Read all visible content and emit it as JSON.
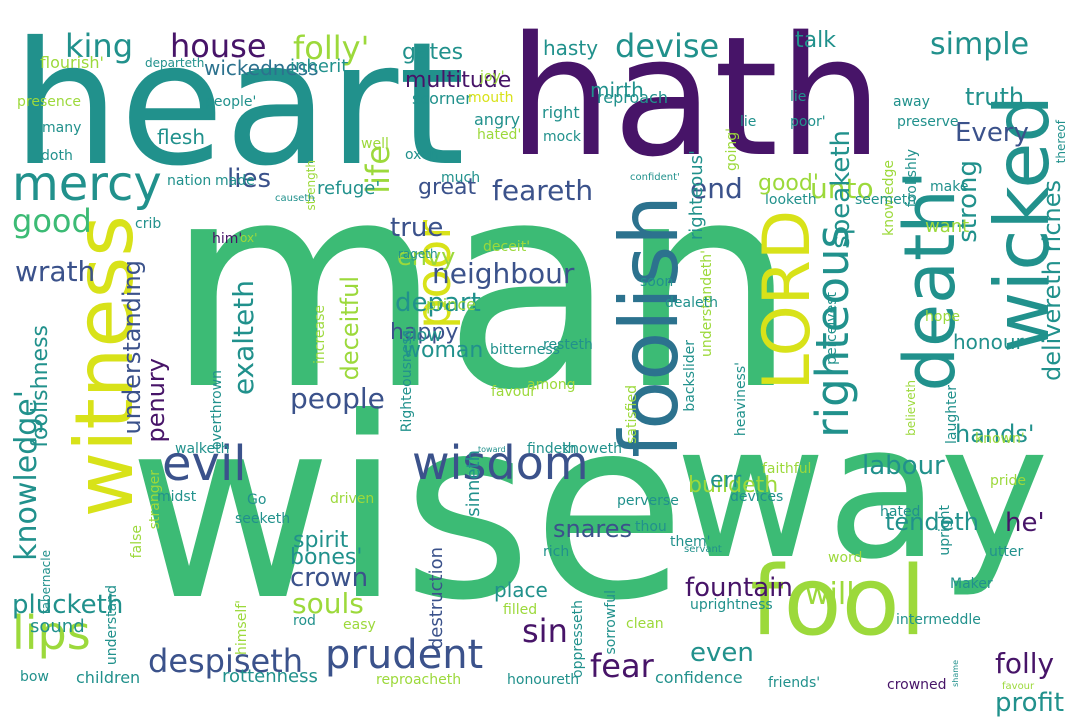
{
  "word_cloud": {
    "colors": {
      "background": "#ffffff",
      "dark_purple": "#471468",
      "indigo": "#3b528b",
      "blue_teal": "#2c728e",
      "teal": "#21918c",
      "green": "#3cbb75",
      "lime": "#9cd93b",
      "yellow": "#d8e219"
    },
    "words": [
      {
        "text": "man"
      },
      {
        "text": "wise"
      },
      {
        "text": "heart"
      },
      {
        "text": "hath"
      },
      {
        "text": "way"
      },
      {
        "text": "fool"
      },
      {
        "text": "foolish"
      },
      {
        "text": "witness"
      },
      {
        "text": "death'"
      },
      {
        "text": "wicked"
      },
      {
        "text": "LORD"
      },
      {
        "text": "mercy"
      },
      {
        "text": "evil"
      },
      {
        "text": "wisdom"
      },
      {
        "text": "lips"
      },
      {
        "text": "poor"
      },
      {
        "text": "prudent"
      },
      {
        "text": "knowledge'"
      },
      {
        "text": "righteous"
      },
      {
        "text": "house"
      },
      {
        "text": "king"
      },
      {
        "text": "folly'"
      },
      {
        "text": "devise"
      },
      {
        "text": "simple"
      },
      {
        "text": "truth"
      },
      {
        "text": "Every"
      },
      {
        "text": "lies"
      },
      {
        "text": "life"
      },
      {
        "text": "good"
      },
      {
        "text": "feareth"
      },
      {
        "text": "end"
      },
      {
        "text": "unto"
      },
      {
        "text": "neighbour"
      },
      {
        "text": "understanding"
      },
      {
        "text": "exalteth"
      },
      {
        "text": "people"
      },
      {
        "text": "will"
      },
      {
        "text": "speaketh"
      },
      {
        "text": "despiseth"
      },
      {
        "text": "foolishness"
      },
      {
        "text": "wrath"
      },
      {
        "text": "penury"
      },
      {
        "text": "sin"
      },
      {
        "text": "fear"
      },
      {
        "text": "even"
      },
      {
        "text": "folly"
      },
      {
        "text": "profit"
      },
      {
        "text": "plucketh"
      },
      {
        "text": "crown"
      },
      {
        "text": "souls"
      },
      {
        "text": "fountain"
      },
      {
        "text": "labour"
      },
      {
        "text": "hands'"
      },
      {
        "text": "he'"
      },
      {
        "text": "tendeth"
      },
      {
        "text": "delivereth"
      },
      {
        "text": "riches"
      },
      {
        "text": "strong"
      },
      {
        "text": "multitude"
      },
      {
        "text": "talk"
      },
      {
        "text": "hasty"
      },
      {
        "text": "gates"
      },
      {
        "text": "wickedness"
      },
      {
        "text": "inherit"
      },
      {
        "text": "joy'"
      },
      {
        "text": "flourish'"
      },
      {
        "text": "departeth"
      },
      {
        "text": "mirth"
      },
      {
        "text": "away"
      },
      {
        "text": "scorner"
      },
      {
        "text": "reproach"
      },
      {
        "text": "people'"
      },
      {
        "text": "mouth"
      },
      {
        "text": "right"
      },
      {
        "text": "angry"
      },
      {
        "text": "hated'"
      },
      {
        "text": "mock"
      },
      {
        "text": "righteous'"
      },
      {
        "text": "going'"
      },
      {
        "text": "lie"
      },
      {
        "text": "poor'"
      },
      {
        "text": "preserve"
      },
      {
        "text": "presence"
      },
      {
        "text": "many"
      },
      {
        "text": "doth"
      },
      {
        "text": "flesh"
      },
      {
        "text": "strength"
      },
      {
        "text": "well"
      },
      {
        "text": "oxen"
      },
      {
        "text": "nation"
      },
      {
        "text": "made"
      },
      {
        "text": "much"
      },
      {
        "text": "causeth"
      },
      {
        "text": "confident'"
      },
      {
        "text": "lie"
      },
      {
        "text": "foolishly"
      },
      {
        "text": "make"
      },
      {
        "text": "knowledge"
      },
      {
        "text": "thereof"
      },
      {
        "text": "seemeth"
      },
      {
        "text": "looketh"
      },
      {
        "text": "refuge'"
      },
      {
        "text": "great"
      },
      {
        "text": "good'"
      },
      {
        "text": "true"
      },
      {
        "text": "envy"
      },
      {
        "text": "him'"
      },
      {
        "text": "ox'"
      },
      {
        "text": "crib"
      },
      {
        "text": "increase"
      },
      {
        "text": "rageth"
      },
      {
        "text": "deceit'"
      },
      {
        "text": "understandeth'"
      },
      {
        "text": "want"
      },
      {
        "text": "depart"
      },
      {
        "text": "deceitful"
      },
      {
        "text": "happy"
      },
      {
        "text": "woman"
      },
      {
        "text": "prince"
      },
      {
        "text": "soon"
      },
      {
        "text": "slow"
      },
      {
        "text": "dealeth"
      },
      {
        "text": "bitterness"
      },
      {
        "text": "perceivest"
      },
      {
        "text": "hope"
      },
      {
        "text": "honour"
      },
      {
        "text": "resteth"
      },
      {
        "text": "among"
      },
      {
        "text": "satisfied"
      },
      {
        "text": "favour'"
      },
      {
        "text": "heaviness'"
      },
      {
        "text": "backslider"
      },
      {
        "text": "believeth"
      },
      {
        "text": "laughter"
      },
      {
        "text": "known'"
      },
      {
        "text": "overthrown"
      },
      {
        "text": "walketh"
      },
      {
        "text": "Righteousness"
      },
      {
        "text": "findeth"
      },
      {
        "text": "toward"
      },
      {
        "text": "knoweth"
      },
      {
        "text": "faithful"
      },
      {
        "text": "devices"
      },
      {
        "text": "Go"
      },
      {
        "text": "stranger"
      },
      {
        "text": "midst"
      },
      {
        "text": "seeketh"
      },
      {
        "text": "driven"
      },
      {
        "text": "pride"
      },
      {
        "text": "perverse"
      },
      {
        "text": "buildeth"
      },
      {
        "text": "err"
      },
      {
        "text": "hated"
      },
      {
        "text": "upright"
      },
      {
        "text": "tabernacle"
      },
      {
        "text": "false"
      },
      {
        "text": "spirit"
      },
      {
        "text": "bones'"
      },
      {
        "text": "destruction"
      },
      {
        "text": "snares"
      },
      {
        "text": "thou"
      },
      {
        "text": "them'"
      },
      {
        "text": "servant"
      },
      {
        "text": "word"
      },
      {
        "text": "utter"
      },
      {
        "text": "Maker"
      },
      {
        "text": "understand"
      },
      {
        "text": "himself'"
      },
      {
        "text": "sorrowful"
      },
      {
        "text": "oppresseth"
      },
      {
        "text": "rich"
      },
      {
        "text": "filled"
      },
      {
        "text": "uprightness"
      },
      {
        "text": "intermeddle"
      },
      {
        "text": "shame"
      },
      {
        "text": "sound"
      },
      {
        "text": "rod"
      },
      {
        "text": "easy"
      },
      {
        "text": "clean"
      },
      {
        "text": "place"
      },
      {
        "text": "bow"
      },
      {
        "text": "children"
      },
      {
        "text": "rottenness"
      },
      {
        "text": "reproacheth"
      },
      {
        "text": "honoureth"
      },
      {
        "text": "confidence"
      },
      {
        "text": "friends'"
      },
      {
        "text": "crowned"
      },
      {
        "text": "favour"
      },
      {
        "text": "sinneth"
      }
    ]
  }
}
